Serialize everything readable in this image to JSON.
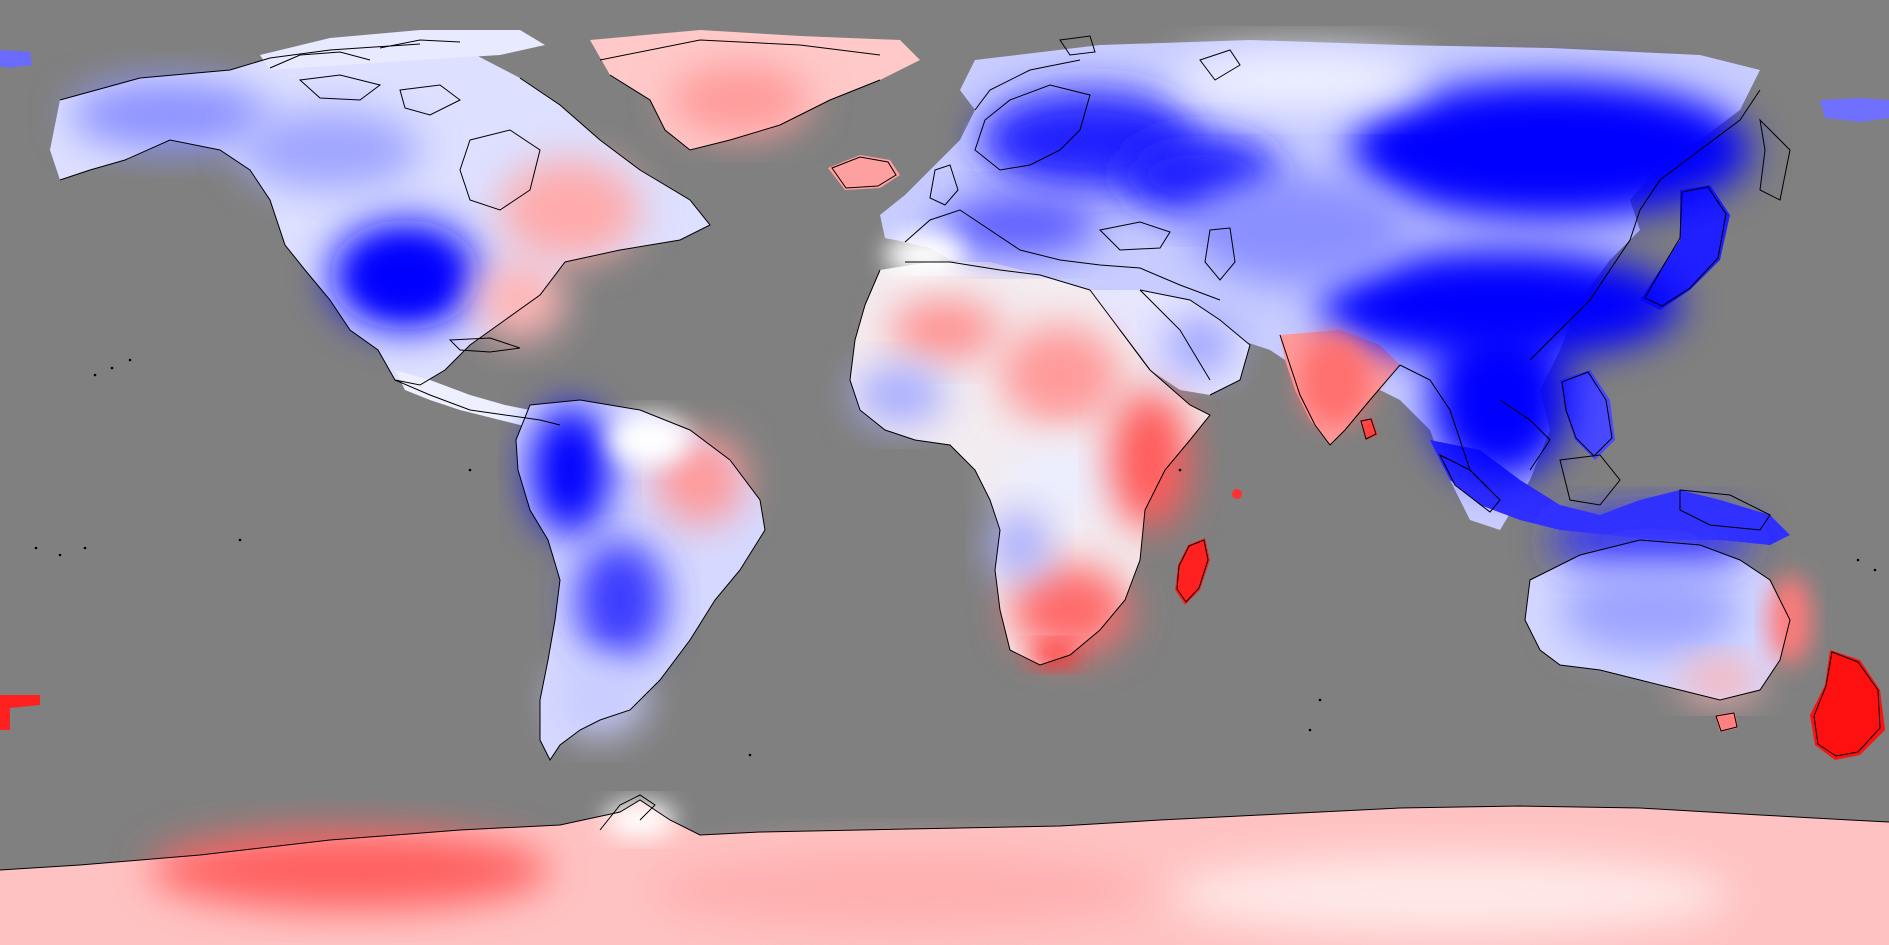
{
  "map": {
    "projection": "equirectangular",
    "ocean_color": "#808080",
    "coastline_color": "#000000",
    "colormap": {
      "strong_negative": "#0000ff",
      "mild_negative": "#b8bcff",
      "neutral": "#ffffff",
      "mild_positive": "#ffb8b8",
      "strong_positive": "#ff0000"
    },
    "regions": [
      {
        "name": "north-america",
        "value": -0.35
      },
      {
        "name": "central-us-cold-spot",
        "value": -1.0
      },
      {
        "name": "eastern-canada",
        "value": 0.3
      },
      {
        "name": "greenland",
        "value": 0.35
      },
      {
        "name": "iceland",
        "value": 0.5
      },
      {
        "name": "scandinavia",
        "value": -0.85
      },
      {
        "name": "eastern-europe",
        "value": -0.6
      },
      {
        "name": "siberia",
        "value": -0.95
      },
      {
        "name": "east-asia",
        "value": -1.0
      },
      {
        "name": "southeast-asia",
        "value": -1.0
      },
      {
        "name": "india",
        "value": 0.45
      },
      {
        "name": "middle-east",
        "value": -0.4
      },
      {
        "name": "sahara",
        "value": 0.35
      },
      {
        "name": "west-africa",
        "value": -0.3
      },
      {
        "name": "east-africa",
        "value": 0.55
      },
      {
        "name": "southern-africa",
        "value": 0.6
      },
      {
        "name": "madagascar",
        "value": 0.9
      },
      {
        "name": "andes-northwest-south-america",
        "value": -1.0
      },
      {
        "name": "eastern-brazil",
        "value": 0.4
      },
      {
        "name": "southern-south-america",
        "value": -0.4
      },
      {
        "name": "australia",
        "value": -0.45
      },
      {
        "name": "eastern-australia",
        "value": 0.45
      },
      {
        "name": "new-zealand",
        "value": 0.95
      },
      {
        "name": "antarctica",
        "value": 0.4
      }
    ]
  }
}
